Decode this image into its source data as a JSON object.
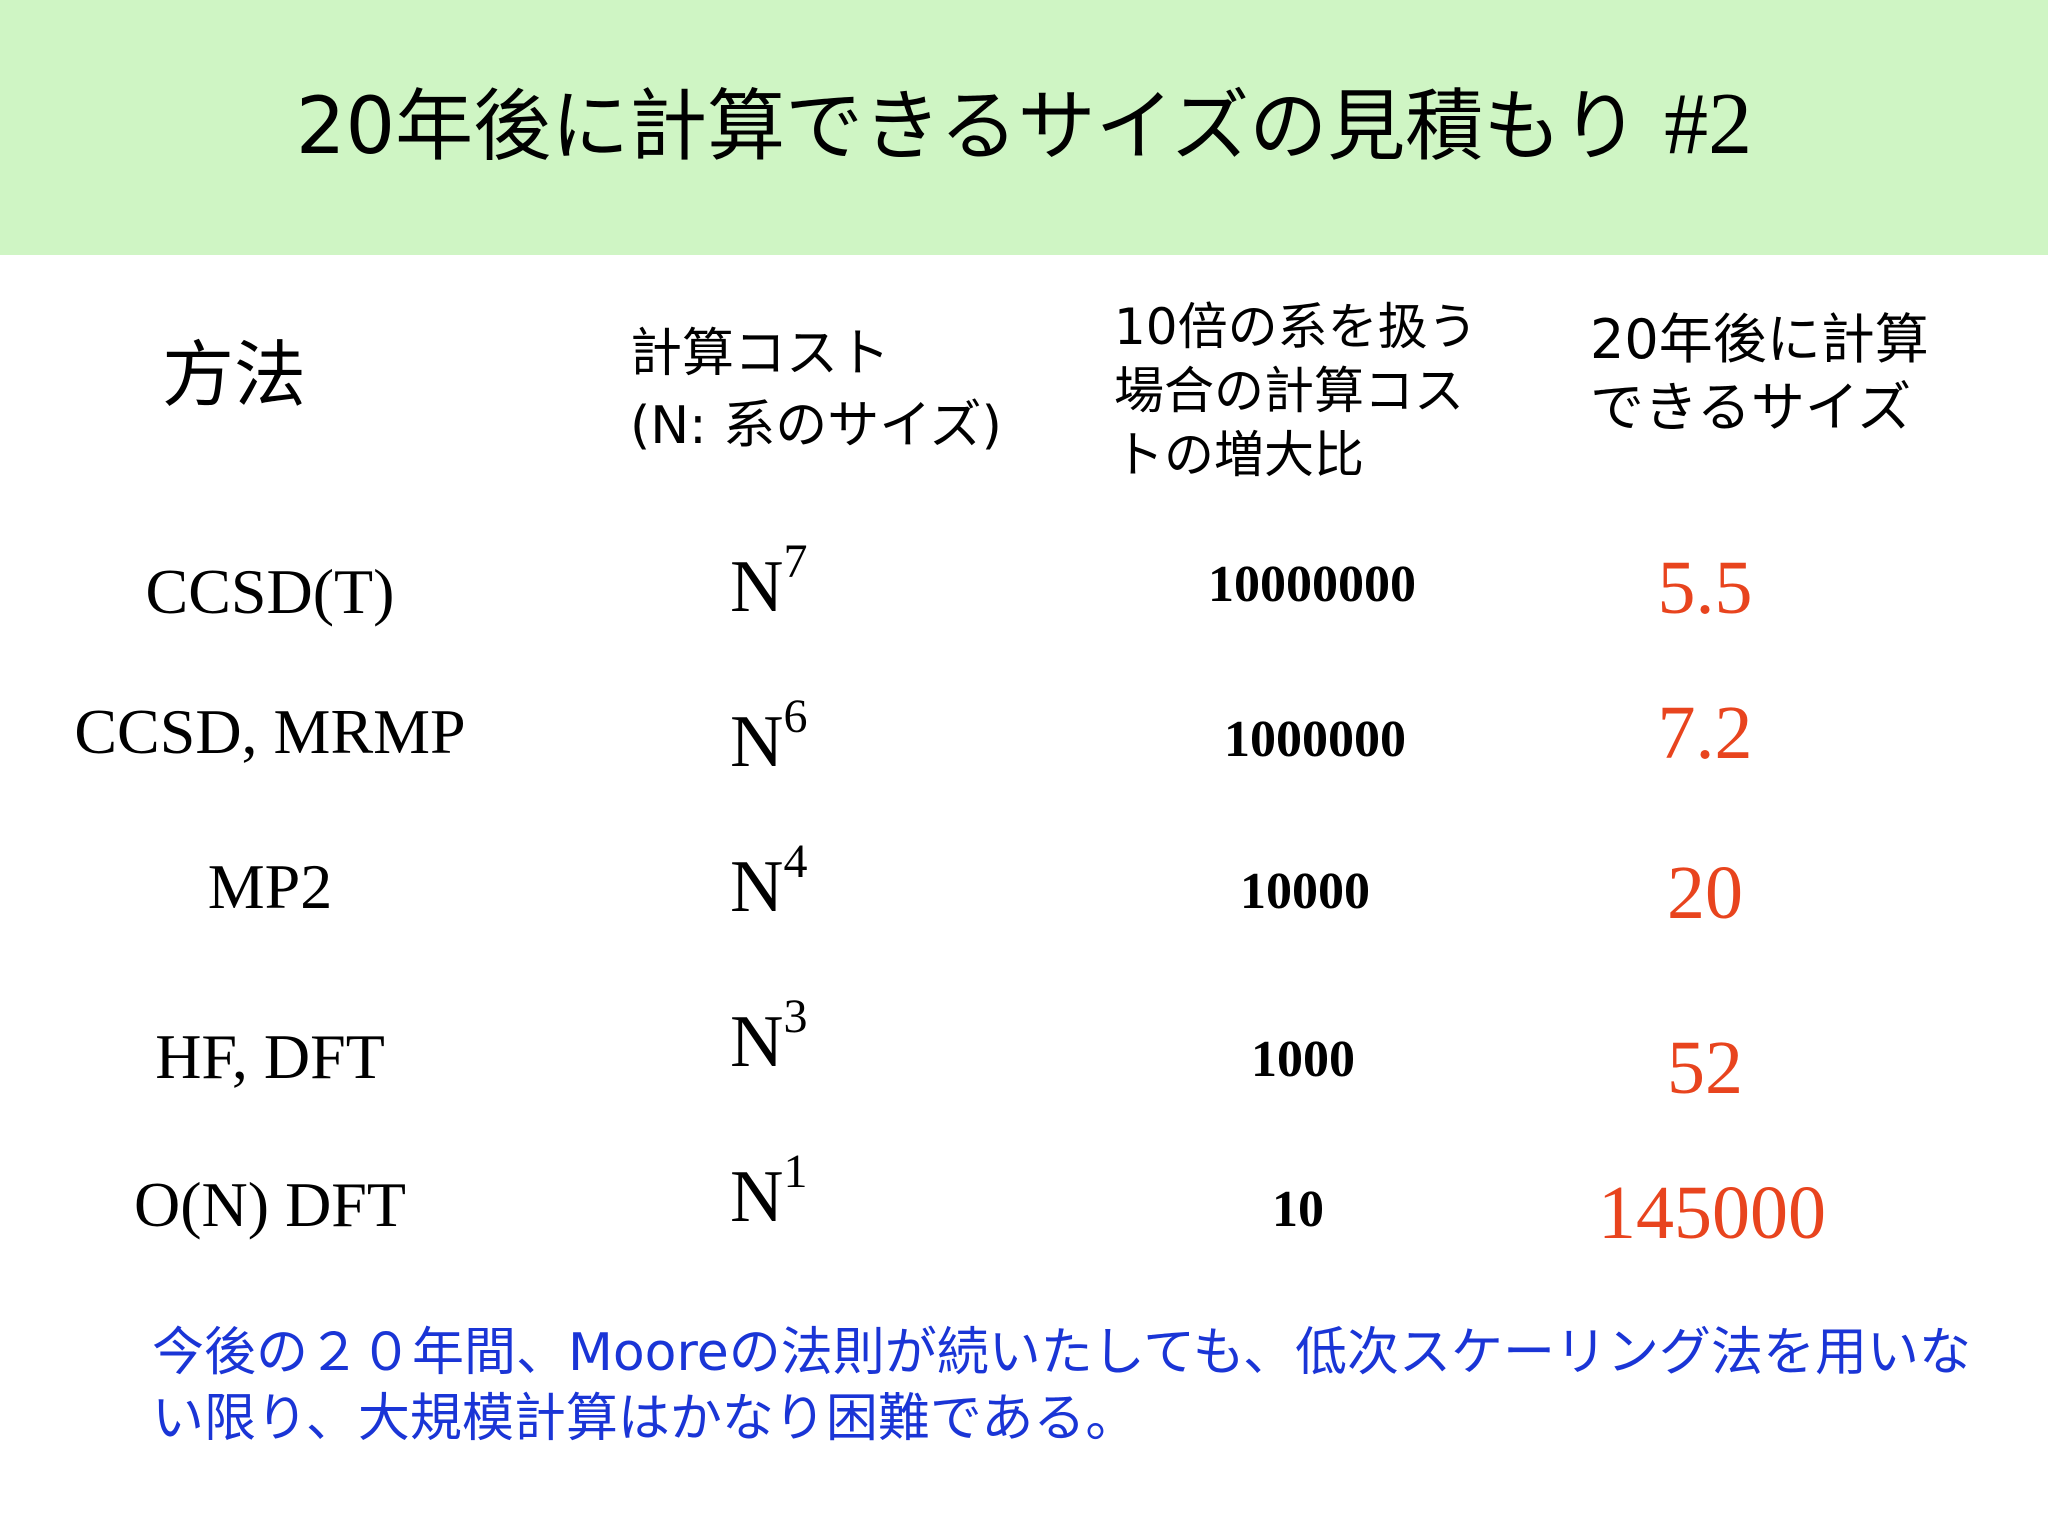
{
  "slide": {
    "title_main": "20年後に計算できるサイズの見積もり",
    "title_number": "#2"
  },
  "headers": {
    "method": "方法",
    "cost": "計算コスト\n(N: 系のサイズ)",
    "ratio": "10倍の系を扱う\n場合の計算コス\nトの増大比",
    "size": "20年後に計算\nできるサイズ"
  },
  "rows": [
    {
      "method": "CCSD(T)",
      "cost_base": "N",
      "cost_exp": "7",
      "ratio": "10000000",
      "size": "5.5"
    },
    {
      "method": "CCSD, MRMP",
      "cost_base": "N",
      "cost_exp": "6",
      "ratio": "1000000",
      "size": "7.2"
    },
    {
      "method": "MP2",
      "cost_base": "N",
      "cost_exp": "4",
      "ratio": "10000",
      "size": "20"
    },
    {
      "method": "HF, DFT",
      "cost_base": "N",
      "cost_exp": "3",
      "ratio": "1000",
      "size": "52"
    },
    {
      "method": "O(N) DFT",
      "cost_base": "N",
      "cost_exp": "1",
      "ratio": "10",
      "size": "145000"
    }
  ],
  "note": "今後の２０年間、Mooreの法則が続いたしても、低次スケーリング法を用いない限り、大規模計算はかなり困難である。",
  "colors": {
    "title_background": "#cff5c4",
    "size_values": "#e8441e",
    "note_text": "#1a35d6"
  }
}
